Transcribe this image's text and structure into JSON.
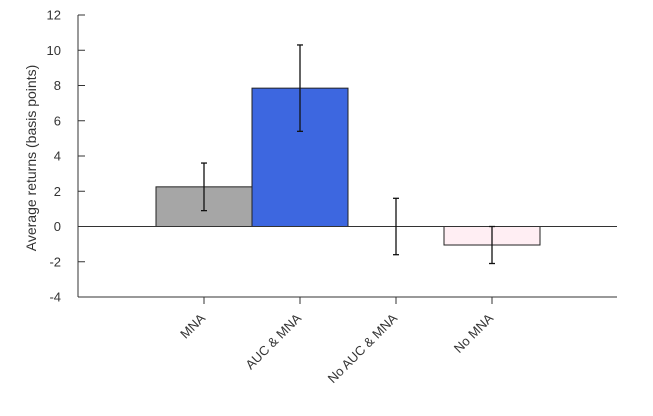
{
  "chart_data": {
    "type": "bar",
    "title": "",
    "xlabel": "",
    "ylabel": "Average returns (basis points)",
    "ylim": [
      -4,
      12
    ],
    "yticks": [
      -4,
      -2,
      0,
      2,
      4,
      6,
      8,
      10,
      12
    ],
    "grid": false,
    "categories": [
      "MNA",
      "AUC & MNA",
      "No AUC & MNA",
      "No MNA"
    ],
    "values": [
      2.25,
      7.85,
      0.0,
      -1.05
    ],
    "error_low": [
      0.9,
      5.4,
      -1.6,
      -2.1
    ],
    "error_high": [
      3.6,
      10.3,
      1.6,
      0.0
    ],
    "colors": [
      "#a6a6a6",
      "#3d67e0",
      "#ffffff",
      "#ffeef3"
    ]
  }
}
